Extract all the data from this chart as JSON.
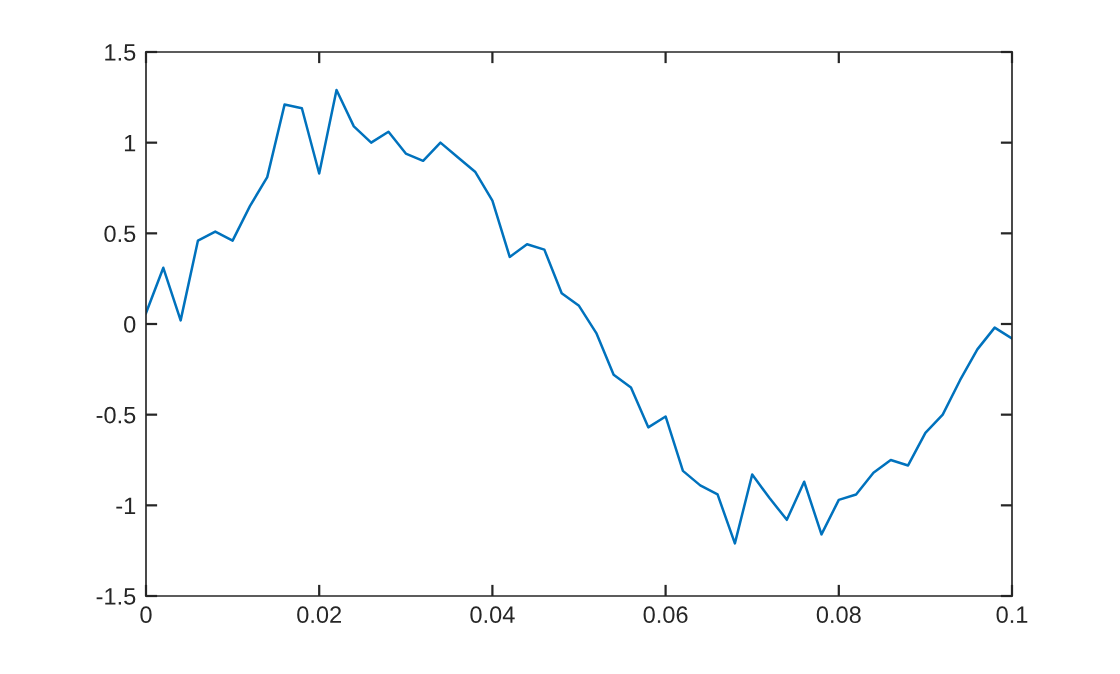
{
  "chart_data": {
    "type": "line",
    "x": [
      0,
      0.002,
      0.004,
      0.006,
      0.008,
      0.01,
      0.012,
      0.014,
      0.016,
      0.018,
      0.02,
      0.022,
      0.024,
      0.026,
      0.028,
      0.03,
      0.032,
      0.034,
      0.036,
      0.038,
      0.04,
      0.042,
      0.044,
      0.046,
      0.048,
      0.05,
      0.052,
      0.054,
      0.056,
      0.058,
      0.06,
      0.062,
      0.064,
      0.066,
      0.068,
      0.07,
      0.072,
      0.074,
      0.076,
      0.078,
      0.08,
      0.082,
      0.084,
      0.086,
      0.088,
      0.09,
      0.092,
      0.094,
      0.096,
      0.098,
      0.1
    ],
    "series": [
      {
        "color": "#0072bd",
        "values": [
          0.06,
          0.31,
          0.02,
          0.46,
          0.51,
          0.46,
          0.65,
          0.81,
          1.21,
          1.19,
          0.83,
          1.29,
          1.09,
          1.0,
          1.06,
          0.94,
          0.9,
          1.0,
          0.92,
          0.84,
          0.68,
          0.37,
          0.44,
          0.41,
          0.17,
          0.1,
          -0.05,
          -0.28,
          -0.35,
          -0.57,
          -0.51,
          -0.81,
          -0.89,
          -0.94,
          -1.21,
          -0.83,
          -0.96,
          -1.08,
          -0.87,
          -1.16,
          -0.97,
          -0.94,
          -0.82,
          -0.75,
          -0.78,
          -0.6,
          -0.5,
          -0.31,
          -0.14,
          -0.02,
          -0.08
        ]
      }
    ],
    "xlim": [
      0,
      0.1
    ],
    "xticks": [
      0,
      0.02,
      0.04,
      0.06,
      0.08,
      0.1
    ],
    "ylim": [
      -1.5,
      1.5
    ],
    "yticks": [
      -1.5,
      -1,
      -0.5,
      0,
      0.5,
      1,
      1.5
    ],
    "grid": false,
    "line_style": "solid"
  }
}
